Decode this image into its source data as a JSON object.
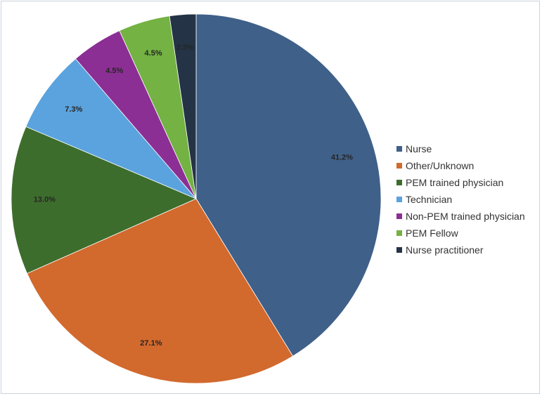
{
  "chart_data": {
    "type": "pie",
    "title": "",
    "legend_position": "right",
    "slices": [
      {
        "label": "Nurse",
        "value": 41.2,
        "value_label": "41.2%",
        "color": "#3f6088"
      },
      {
        "label": "Other/Unknown",
        "value": 27.1,
        "value_label": "27.1%",
        "color": "#d2692d"
      },
      {
        "label": "PEM trained physician",
        "value": 13.0,
        "value_label": "13.0%",
        "color": "#3d6d2c"
      },
      {
        "label": "Technician",
        "value": 7.3,
        "value_label": "7.3%",
        "color": "#5aa3de"
      },
      {
        "label": "Non-PEM trained physician",
        "value": 4.5,
        "value_label": "4.5%",
        "color": "#8c2f94"
      },
      {
        "label": "PEM Fellow",
        "value": 4.5,
        "value_label": "4.5%",
        "color": "#73b243"
      },
      {
        "label": "Nurse practitioner",
        "value": 2.3,
        "value_label": "2.3%",
        "color": "#243345"
      }
    ]
  }
}
